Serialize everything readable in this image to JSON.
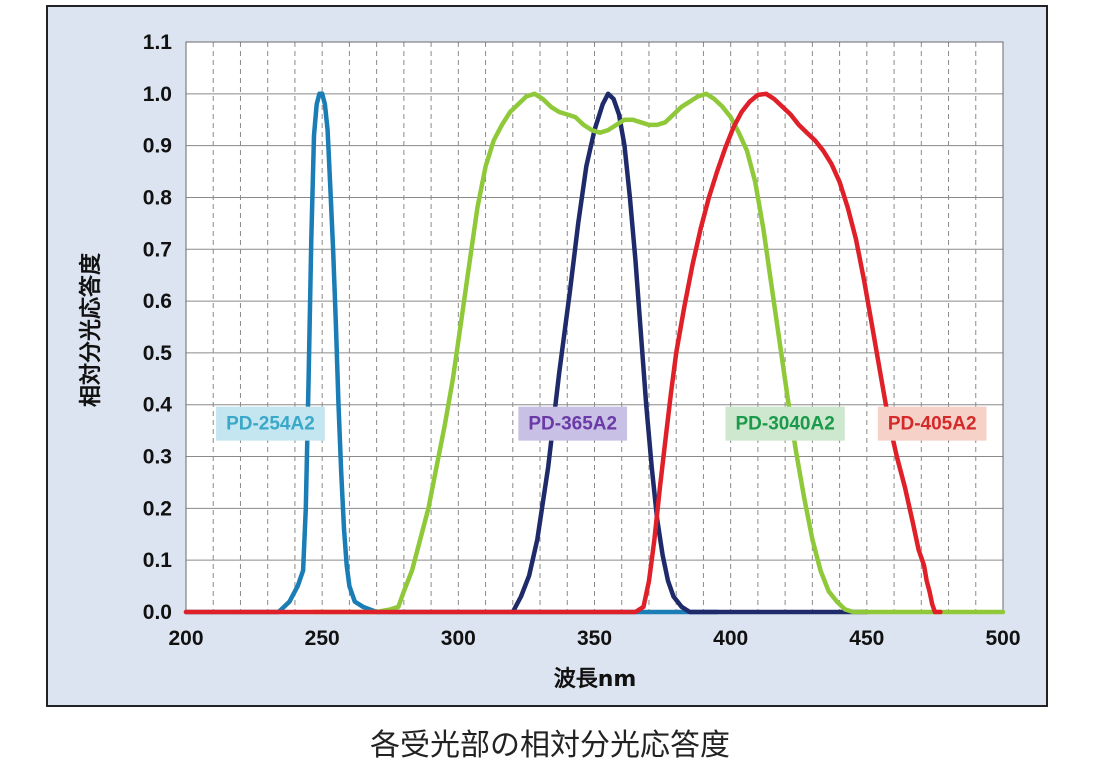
{
  "caption": "各受光部の相対分光応答度",
  "chart_data": {
    "type": "line",
    "xlabel": "波長nm",
    "ylabel": "相対分光応答度",
    "xlim": [
      200,
      500
    ],
    "ylim": [
      0,
      1.1
    ],
    "x_ticks": [
      200,
      250,
      300,
      350,
      400,
      450,
      500
    ],
    "y_ticks": [
      0.0,
      0.1,
      0.2,
      0.3,
      0.4,
      0.5,
      0.6,
      0.7,
      0.8,
      0.9,
      1.0,
      1.1
    ],
    "x_tick_labels": [
      "200",
      "250",
      "300",
      "350",
      "400",
      "450",
      "500"
    ],
    "y_tick_labels": [
      "0.0",
      "0.1",
      "0.2",
      "0.3",
      "0.4",
      "0.5",
      "0.6",
      "0.7",
      "0.8",
      "0.9",
      "1.0",
      "1.1"
    ],
    "grid": true,
    "series": [
      {
        "name": "PD-254A2",
        "color": "#1a7db5",
        "label_bg": "#c4e6f0",
        "label_color": "#3aa8c8",
        "points": [
          [
            200,
            0
          ],
          [
            234,
            0
          ],
          [
            238,
            0.02
          ],
          [
            241,
            0.05
          ],
          [
            243,
            0.08
          ],
          [
            244,
            0.2
          ],
          [
            245,
            0.45
          ],
          [
            246,
            0.72
          ],
          [
            247,
            0.92
          ],
          [
            248,
            0.98
          ],
          [
            249,
            1.0
          ],
          [
            250,
            1.0
          ],
          [
            251,
            0.98
          ],
          [
            252,
            0.93
          ],
          [
            253,
            0.82
          ],
          [
            254,
            0.7
          ],
          [
            255,
            0.56
          ],
          [
            256,
            0.4
          ],
          [
            257,
            0.27
          ],
          [
            258,
            0.16
          ],
          [
            259,
            0.09
          ],
          [
            260,
            0.05
          ],
          [
            262,
            0.02
          ],
          [
            265,
            0.01
          ],
          [
            270,
            0
          ],
          [
            280,
            0
          ],
          [
            300,
            0
          ],
          [
            350,
            0
          ],
          [
            380,
            0
          ],
          [
            395,
            0
          ]
        ]
      },
      {
        "name": "PD-365A2",
        "color": "#1f2a6a",
        "label_bg": "#c9c0e6",
        "label_color": "#6a3aa6",
        "points": [
          [
            320,
            0
          ],
          [
            323,
            0.03
          ],
          [
            326,
            0.07
          ],
          [
            329,
            0.14
          ],
          [
            333,
            0.28
          ],
          [
            337,
            0.46
          ],
          [
            341,
            0.62
          ],
          [
            344,
            0.75
          ],
          [
            347,
            0.86
          ],
          [
            350,
            0.93
          ],
          [
            353,
            0.98
          ],
          [
            355,
            1.0
          ],
          [
            357,
            0.99
          ],
          [
            359,
            0.96
          ],
          [
            361,
            0.9
          ],
          [
            363,
            0.8
          ],
          [
            365,
            0.68
          ],
          [
            367,
            0.54
          ],
          [
            369,
            0.4
          ],
          [
            371,
            0.28
          ],
          [
            373,
            0.18
          ],
          [
            375,
            0.11
          ],
          [
            377,
            0.06
          ],
          [
            379,
            0.03
          ],
          [
            382,
            0.01
          ],
          [
            385,
            0
          ],
          [
            400,
            0
          ],
          [
            450,
            0
          ]
        ]
      },
      {
        "name": "PD-3040A2",
        "color": "#8fc93a",
        "label_bg": "#cde8cf",
        "label_color": "#1a9a4a",
        "points": [
          [
            247,
            0
          ],
          [
            260,
            0
          ],
          [
            270,
            0
          ],
          [
            275,
            0.005
          ],
          [
            278,
            0.01
          ],
          [
            280,
            0.04
          ],
          [
            283,
            0.08
          ],
          [
            286,
            0.14
          ],
          [
            289,
            0.2
          ],
          [
            292,
            0.28
          ],
          [
            295,
            0.36
          ],
          [
            298,
            0.45
          ],
          [
            301,
            0.56
          ],
          [
            304,
            0.67
          ],
          [
            307,
            0.78
          ],
          [
            310,
            0.86
          ],
          [
            313,
            0.91
          ],
          [
            316,
            0.94
          ],
          [
            319,
            0.965
          ],
          [
            322,
            0.98
          ],
          [
            325,
            0.995
          ],
          [
            328,
            1.0
          ],
          [
            331,
            0.99
          ],
          [
            334,
            0.975
          ],
          [
            337,
            0.965
          ],
          [
            340,
            0.96
          ],
          [
            343,
            0.955
          ],
          [
            346,
            0.94
          ],
          [
            349,
            0.93
          ],
          [
            352,
            0.925
          ],
          [
            355,
            0.93
          ],
          [
            358,
            0.94
          ],
          [
            361,
            0.95
          ],
          [
            364,
            0.95
          ],
          [
            367,
            0.945
          ],
          [
            370,
            0.94
          ],
          [
            373,
            0.94
          ],
          [
            376,
            0.945
          ],
          [
            379,
            0.96
          ],
          [
            382,
            0.975
          ],
          [
            385,
            0.985
          ],
          [
            388,
            0.995
          ],
          [
            391,
            1.0
          ],
          [
            394,
            0.99
          ],
          [
            397,
            0.975
          ],
          [
            400,
            0.955
          ],
          [
            403,
            0.925
          ],
          [
            406,
            0.89
          ],
          [
            409,
            0.83
          ],
          [
            412,
            0.74
          ],
          [
            415,
            0.63
          ],
          [
            418,
            0.52
          ],
          [
            421,
            0.41
          ],
          [
            424,
            0.31
          ],
          [
            427,
            0.22
          ],
          [
            430,
            0.14
          ],
          [
            433,
            0.08
          ],
          [
            436,
            0.04
          ],
          [
            439,
            0.02
          ],
          [
            442,
            0.005
          ],
          [
            445,
            0
          ],
          [
            500,
            0
          ]
        ]
      },
      {
        "name": "PD-405A2",
        "color": "#e02028",
        "label_bg": "#f5d1c8",
        "label_color": "#d42a2a",
        "points": [
          [
            200,
            0
          ],
          [
            247,
            0
          ],
          [
            300,
            0
          ],
          [
            350,
            0
          ],
          [
            365,
            0
          ],
          [
            368,
            0.01
          ],
          [
            370,
            0.06
          ],
          [
            372,
            0.14
          ],
          [
            374,
            0.24
          ],
          [
            376,
            0.33
          ],
          [
            378,
            0.42
          ],
          [
            380,
            0.5
          ],
          [
            383,
            0.59
          ],
          [
            386,
            0.67
          ],
          [
            389,
            0.74
          ],
          [
            392,
            0.8
          ],
          [
            395,
            0.85
          ],
          [
            398,
            0.895
          ],
          [
            401,
            0.935
          ],
          [
            404,
            0.965
          ],
          [
            407,
            0.985
          ],
          [
            410,
            0.998
          ],
          [
            413,
            1.0
          ],
          [
            416,
            0.99
          ],
          [
            419,
            0.975
          ],
          [
            422,
            0.96
          ],
          [
            425,
            0.94
          ],
          [
            428,
            0.925
          ],
          [
            431,
            0.91
          ],
          [
            434,
            0.89
          ],
          [
            437,
            0.865
          ],
          [
            440,
            0.83
          ],
          [
            443,
            0.78
          ],
          [
            446,
            0.72
          ],
          [
            449,
            0.64
          ],
          [
            452,
            0.55
          ],
          [
            455,
            0.46
          ],
          [
            458,
            0.37
          ],
          [
            461,
            0.3
          ],
          [
            464,
            0.24
          ],
          [
            467,
            0.17
          ],
          [
            469,
            0.12
          ],
          [
            471,
            0.09
          ],
          [
            472,
            0.06
          ],
          [
            473,
            0.04
          ],
          [
            474,
            0.015
          ],
          [
            475,
            0
          ],
          [
            477,
            0
          ]
        ]
      }
    ],
    "labels": [
      {
        "text": "PD-254A2",
        "x": 231,
        "y": 0.35,
        "series": 0
      },
      {
        "text": "PD-365A2",
        "x": 342,
        "y": 0.35,
        "series": 1
      },
      {
        "text": "PD-3040A2",
        "x": 420,
        "y": 0.35,
        "series": 2
      },
      {
        "text": "PD-405A2",
        "x": 474,
        "y": 0.35,
        "series": 3
      }
    ]
  }
}
